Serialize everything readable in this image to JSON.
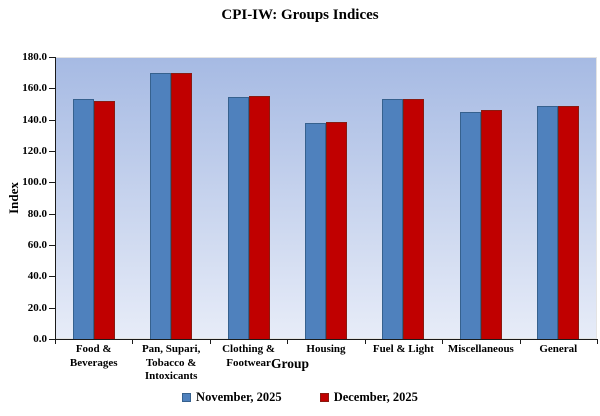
{
  "chart_data": {
    "type": "bar",
    "title": "CPI-IW: Groups Indices",
    "xlabel": "Group",
    "ylabel": "Index",
    "ylim": [
      0,
      180
    ],
    "ytick_step": 20,
    "ytick_labels": [
      "180.0",
      "160.0",
      "140.0",
      "120.0",
      "100.0",
      "80.0",
      "60.0",
      "40.0",
      "20.0",
      "0.0"
    ],
    "grid": false,
    "legend_position": "bottom",
    "plot_bg_top": "#a6bae3",
    "plot_bg_bottom": "#e7ecf8",
    "axis_color": "#1a1a1a",
    "categories": [
      "Food & Beverages",
      "Pan, Supari, Tobacco & Intoxicants",
      "Clothing & Footwear",
      "Housing",
      "Fuel & Light",
      "Miscellaneous",
      "General"
    ],
    "series": [
      {
        "name": "November, 2025",
        "color": "#4f81bd",
        "border_color": "#36618e",
        "values": [
          152.9,
          169.9,
          154.7,
          138.0,
          152.9,
          145.2,
          148.5
        ]
      },
      {
        "name": "December, 2025",
        "color": "#c00000",
        "border_color": "#8a1a10",
        "values": [
          152.2,
          169.7,
          154.9,
          138.6,
          153.2,
          145.9,
          148.9
        ]
      }
    ]
  }
}
